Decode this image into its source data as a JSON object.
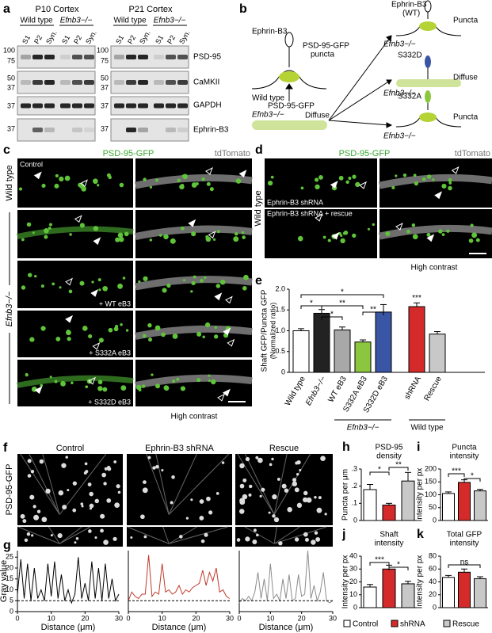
{
  "figure": {
    "a": {
      "label": "a",
      "titles": [
        "P10 Cortex",
        "P21 Cortex"
      ],
      "genotypes": [
        "Wild type",
        "Efnb3−/−"
      ],
      "lanes": [
        "S1",
        "P2",
        "Syn."
      ],
      "markers": [
        100,
        75,
        50,
        37,
        37,
        37
      ],
      "proteins": [
        "PSD-95",
        "CaMKII",
        "GAPDH",
        "Ephrin-B3"
      ]
    },
    "b": {
      "label": "b",
      "items": [
        "Ephrin-B3",
        "PSD-95-GFP",
        "puncta",
        "Wild type",
        "Efnb3−/−",
        "Diffuse",
        "(WT)",
        "Puncta",
        "S332D",
        "S332A"
      ]
    },
    "c": {
      "label": "c",
      "channels": [
        "PSD-95-GFP",
        "tdTomato"
      ],
      "genotypes": [
        "Wild type",
        "Efnb3−/−"
      ],
      "conditions": [
        "Control",
        "+ WT eB3",
        "+ S332A eB3",
        "+ S332D eB3"
      ],
      "note": "High contrast"
    },
    "d": {
      "label": "d",
      "channels": [
        "PSD-95-GFP",
        "tdTomato"
      ],
      "genotype": "Wild type",
      "conditions": [
        "Ephrin-B3 shRNA",
        "Ephrin-B3 shRNA + rescue"
      ],
      "note": "High contrast"
    },
    "f": {
      "label": "f",
      "conditions": [
        "Control",
        "Ephrin-B3 shRNA",
        "Rescue"
      ],
      "ylabel": "PSD-95-GFP"
    }
  },
  "legend": {
    "names": [
      "Control",
      "shRNA",
      "Rescue"
    ],
    "colors": [
      "#ffffff",
      "#d42a2a",
      "#c8c8c8"
    ]
  },
  "chart_data": [
    {
      "type": "bar",
      "label": "e",
      "ylabel": "Shaft GFP/Puncta GFP",
      "ylabel2": "(Normalized ratio)",
      "categories": [
        "Wild type",
        "Efnb3−/−",
        "WT eB3",
        "S332A eB3",
        "S332D eB3",
        "shRNA",
        "Rescue"
      ],
      "values": [
        1.0,
        1.42,
        1.02,
        0.73,
        1.45,
        1.58,
        0.92
      ],
      "errors": [
        0.05,
        0.09,
        0.07,
        0.05,
        0.18,
        0.09,
        0.06
      ],
      "colors": [
        "#ffffff",
        "#222222",
        "#a8a8a8",
        "#8cc63f",
        "#3a55a4",
        "#d42a2a",
        "#c8c8c8"
      ],
      "ylim": [
        0,
        2
      ],
      "yticks": [
        0,
        0.5,
        {
          "value": 1,
          "label": "1.0"
        },
        1.5,
        {
          "value": 2,
          "label": "2.0"
        }
      ],
      "groups": [
        "Efnb3−/−",
        "Wild type"
      ],
      "annotations": [
        "*",
        "*",
        "**",
        "**",
        "*",
        "***"
      ]
    },
    {
      "type": "line",
      "label": "g",
      "ylabel": "Gray value",
      "xlabel": "Distance (μm)",
      "x": [
        0,
        1,
        2,
        3,
        4,
        5,
        6,
        7,
        8,
        9,
        10,
        11,
        12,
        13,
        14,
        15,
        16,
        17,
        18,
        19,
        20,
        21,
        22,
        23,
        24,
        25,
        26,
        27,
        28,
        29,
        30
      ],
      "values": [
        8,
        24,
        6,
        22,
        5,
        20,
        6,
        10,
        5,
        22,
        7,
        23,
        6,
        17,
        5,
        10,
        4,
        8,
        25,
        6,
        13,
        5,
        23,
        6,
        20,
        5,
        22,
        6,
        15,
        5,
        8
      ],
      "color": "#000000",
      "threshold": 5,
      "xlim": [
        0,
        30
      ],
      "ylim": [
        0,
        28
      ],
      "xticks": [
        0,
        10,
        20,
        30
      ],
      "yticks": [
        0,
        5,
        10,
        15,
        20,
        25
      ]
    },
    {
      "type": "line",
      "xlabel": "Distance (μm)",
      "x": [
        0,
        1,
        2,
        3,
        4,
        5,
        6,
        7,
        8,
        9,
        10,
        11,
        12,
        13,
        14,
        15,
        16,
        17,
        18,
        19,
        20,
        21,
        22,
        23,
        24,
        25,
        26,
        27,
        28,
        29,
        30
      ],
      "values": [
        5,
        9,
        7,
        6,
        8,
        8,
        26,
        7,
        9,
        8,
        22,
        9,
        10,
        8,
        9,
        12,
        8,
        10,
        9,
        11,
        12,
        13,
        19,
        12,
        18,
        14,
        20,
        9,
        10,
        7,
        6
      ],
      "color": "#c0392b",
      "threshold": 5,
      "xlim": [
        0,
        30
      ],
      "ylim": [
        0,
        28
      ],
      "xticks": [
        0,
        10,
        20,
        30
      ]
    },
    {
      "type": "line",
      "xlabel": "Distance (μm)",
      "x": [
        0,
        1,
        2,
        3,
        4,
        5,
        6,
        7,
        8,
        9,
        10,
        11,
        12,
        13,
        14,
        15,
        16,
        17,
        18,
        19,
        20,
        21,
        22,
        23,
        24,
        25,
        26,
        27,
        28,
        29,
        30
      ],
      "values": [
        4,
        6,
        5,
        7,
        5,
        9,
        18,
        6,
        15,
        5,
        22,
        6,
        8,
        5,
        15,
        6,
        17,
        5,
        6,
        17,
        7,
        8,
        28,
        6,
        12,
        5,
        9,
        18,
        5,
        4,
        5
      ],
      "color": "#8c8c8c",
      "threshold": 5,
      "xlim": [
        0,
        30
      ],
      "ylim": [
        0,
        28
      ],
      "xticks": [
        0,
        10,
        20,
        30
      ]
    },
    {
      "type": "bar",
      "label": "h",
      "title_lines": [
        "PSD-95",
        "density"
      ],
      "ylabel": "Puncta per μm",
      "values": [
        0.18,
        0.09,
        0.23
      ],
      "errors": [
        0.03,
        0.01,
        0.05
      ],
      "ylim": [
        0,
        0.3
      ],
      "yticks": [
        0,
        {
          "value": 0.1,
          "label": ".1"
        },
        {
          "value": 0.2,
          "label": ".2"
        },
        {
          "value": 0.3,
          "label": ".3"
        }
      ],
      "annotations": [
        "*",
        "**"
      ]
    },
    {
      "type": "bar",
      "label": "i",
      "title_lines": [
        "Puncta",
        "intensity"
      ],
      "ylabel": "Intensity per px",
      "values": [
        105,
        148,
        115
      ],
      "errors": [
        6,
        10,
        6
      ],
      "ylim": [
        0,
        200
      ],
      "yticks": [
        0,
        50,
        100,
        150,
        200
      ],
      "annotations": [
        "***",
        "*"
      ]
    },
    {
      "type": "bar",
      "label": "j",
      "title_lines": [
        "Shaft",
        "intensity"
      ],
      "ylabel": "Intensity per px",
      "values": [
        16,
        30,
        18.5
      ],
      "errors": [
        2,
        3,
        2
      ],
      "ylim": [
        0,
        40
      ],
      "yticks": [
        0,
        10,
        20,
        30,
        40
      ],
      "annotations": [
        "***",
        "*"
      ]
    },
    {
      "type": "bar",
      "label": "k",
      "title_lines": [
        "Total GFP",
        "intensity"
      ],
      "ylabel": "Intensity per px",
      "values": [
        47,
        55,
        45
      ],
      "errors": [
        3,
        5,
        3
      ],
      "ylim": [
        0,
        80
      ],
      "yticks": [
        0,
        20,
        40,
        60,
        80
      ],
      "annotations": [
        "ns"
      ]
    }
  ]
}
